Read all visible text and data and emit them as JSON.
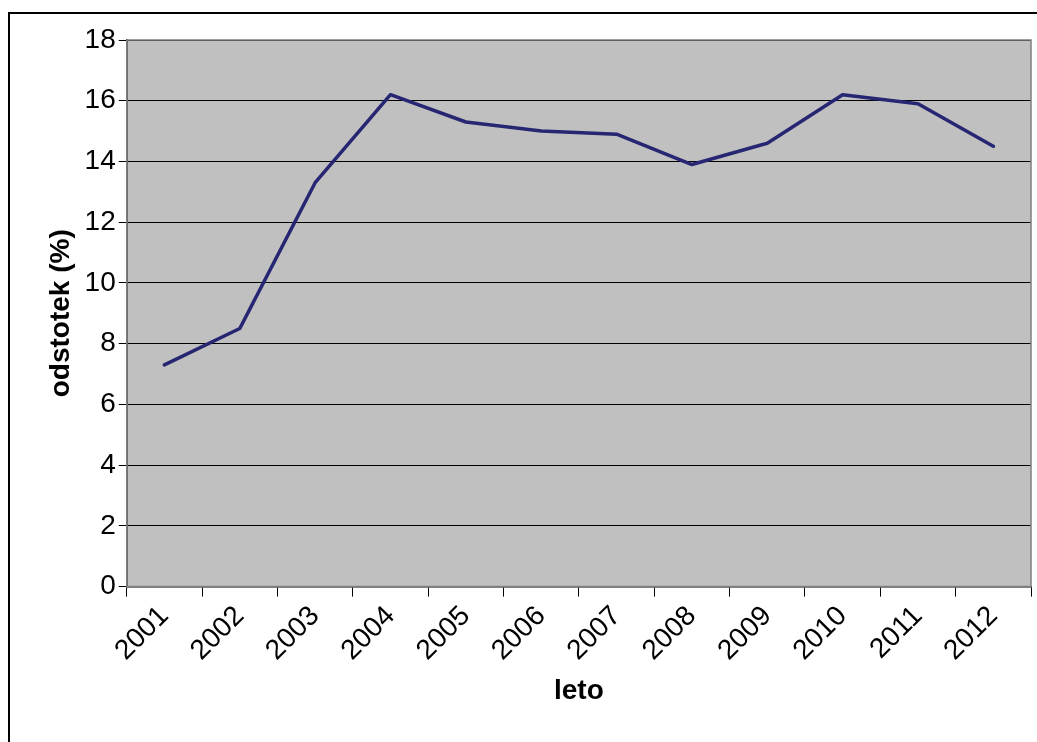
{
  "chart_data": {
    "type": "line",
    "xlabel": "leto",
    "ylabel": "odstotek (%)",
    "categories": [
      "2001",
      "2002",
      "2003",
      "2004",
      "2005",
      "2006",
      "2007",
      "2008",
      "2009",
      "2010",
      "2011",
      "2012"
    ],
    "series": [
      {
        "color": "#262673",
        "values": [
          7.3,
          8.5,
          13.3,
          16.2,
          15.3,
          15.0,
          14.9,
          13.9,
          14.6,
          16.2,
          15.9,
          14.5
        ]
      }
    ],
    "ylim": [
      0,
      18
    ],
    "yticks": [
      0,
      2,
      4,
      6,
      8,
      10,
      12,
      14,
      16,
      18
    ],
    "grid": "y",
    "legend": false,
    "marker": "none",
    "line_style": "solid"
  }
}
